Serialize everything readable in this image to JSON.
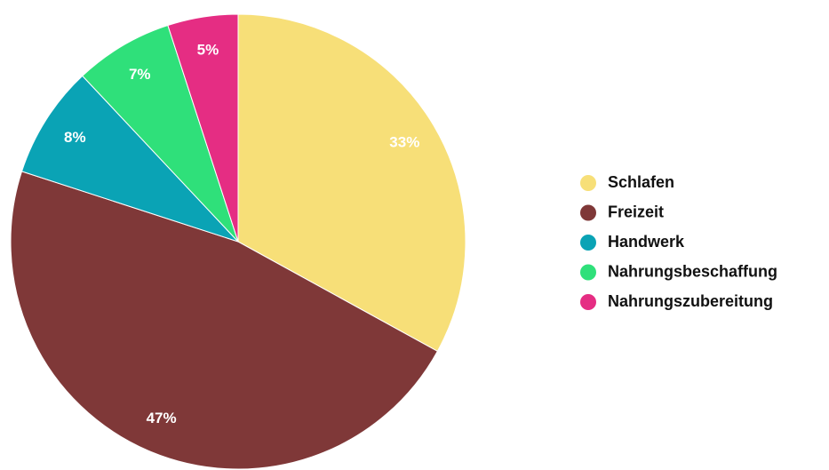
{
  "chart_data": {
    "type": "pie",
    "categories": [
      "Schlafen",
      "Freizeit",
      "Handwerk",
      "Nahrungsbeschaffung",
      "Nahrungszubereitung"
    ],
    "values": [
      33,
      47,
      8,
      7,
      5
    ],
    "value_labels": [
      "33%",
      "47%",
      "8%",
      "7%",
      "5%"
    ],
    "colors": [
      "#f7df78",
      "#7f3838",
      "#0aa3b5",
      "#2fe07a",
      "#e52d83"
    ],
    "legend": "right"
  }
}
